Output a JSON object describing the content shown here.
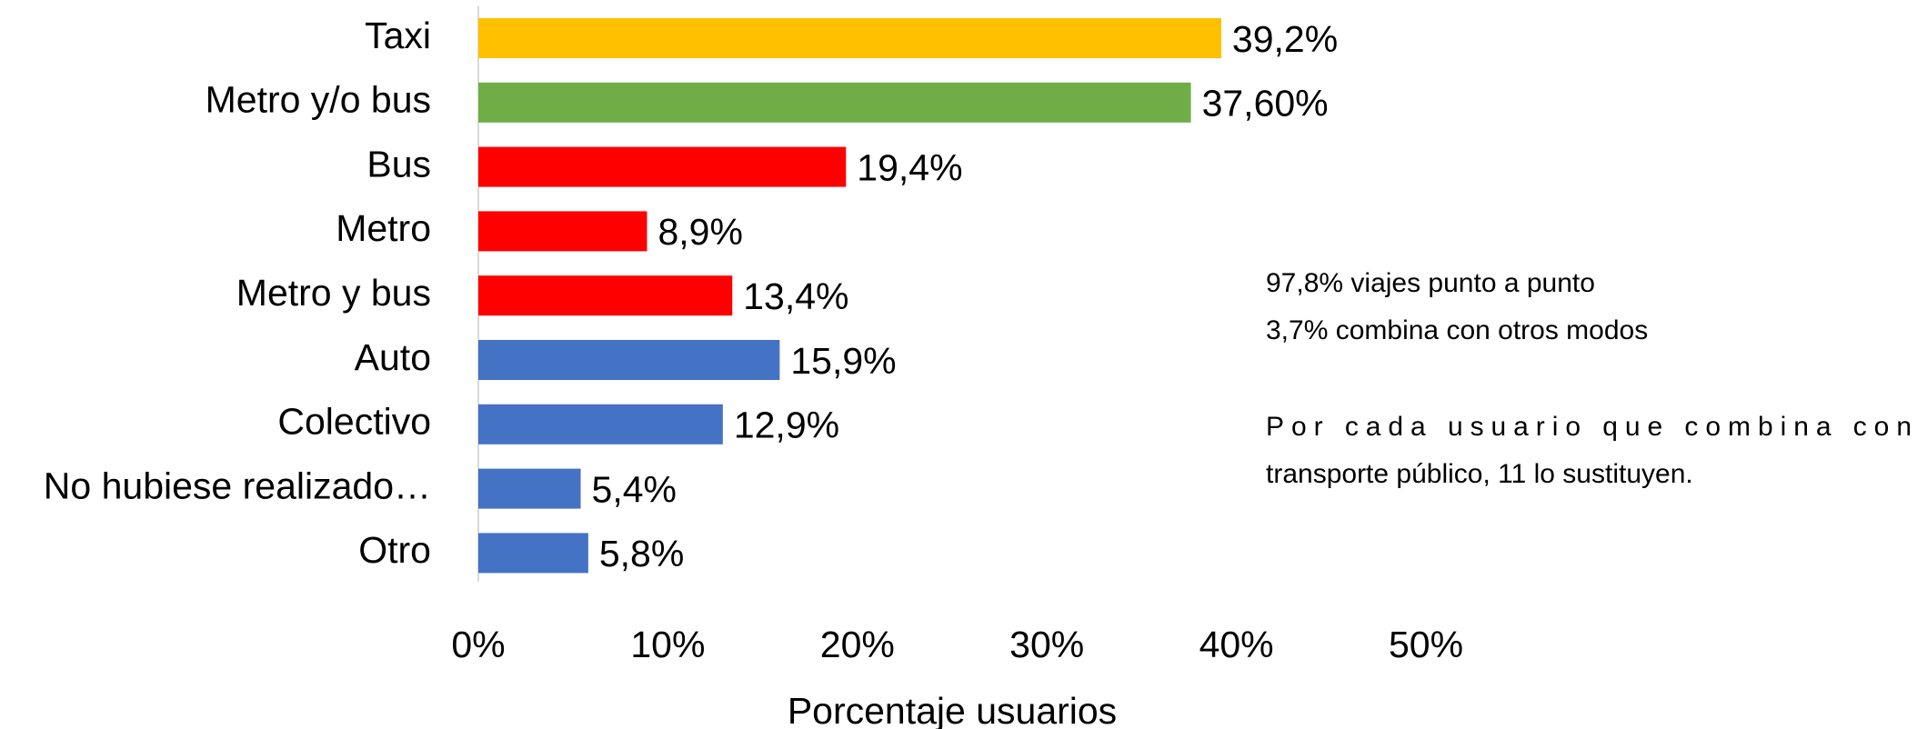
{
  "chart_data": {
    "type": "barh",
    "categories": [
      "Taxi",
      "Metro y/o bus",
      "Bus",
      "Metro",
      "Metro y bus",
      "Auto",
      "Colectivo",
      "No hubiese realizado…",
      "Otro"
    ],
    "values": [
      39.2,
      37.6,
      19.4,
      8.9,
      13.4,
      15.9,
      12.9,
      5.4,
      5.8
    ],
    "value_labels": [
      "39,2%",
      "37,60%",
      "19,4%",
      "8,9%",
      "13,4%",
      "15,9%",
      "12,9%",
      "5,4%",
      "5,8%"
    ],
    "colors": [
      "#ffc000",
      "#70ad47",
      "#ff0000",
      "#ff0000",
      "#ff0000",
      "#4472c4",
      "#4472c4",
      "#4472c4",
      "#4472c4"
    ],
    "xlim": [
      0,
      50
    ],
    "xticks": [
      {
        "value": 0,
        "label": "0%"
      },
      {
        "value": 10,
        "label": "10%"
      },
      {
        "value": 20,
        "label": "20%"
      },
      {
        "value": 30,
        "label": "30%"
      },
      {
        "value": 40,
        "label": "40%"
      },
      {
        "value": 50,
        "label": "50%"
      }
    ],
    "xlabel": "Porcentaje usuarios",
    "annotations": [
      "97,8% viajes punto a punto",
      "3,7% combina con otros modos",
      "Por cada usuario que combina con",
      "transporte público, 11 lo sustituyen."
    ],
    "grid": false
  }
}
